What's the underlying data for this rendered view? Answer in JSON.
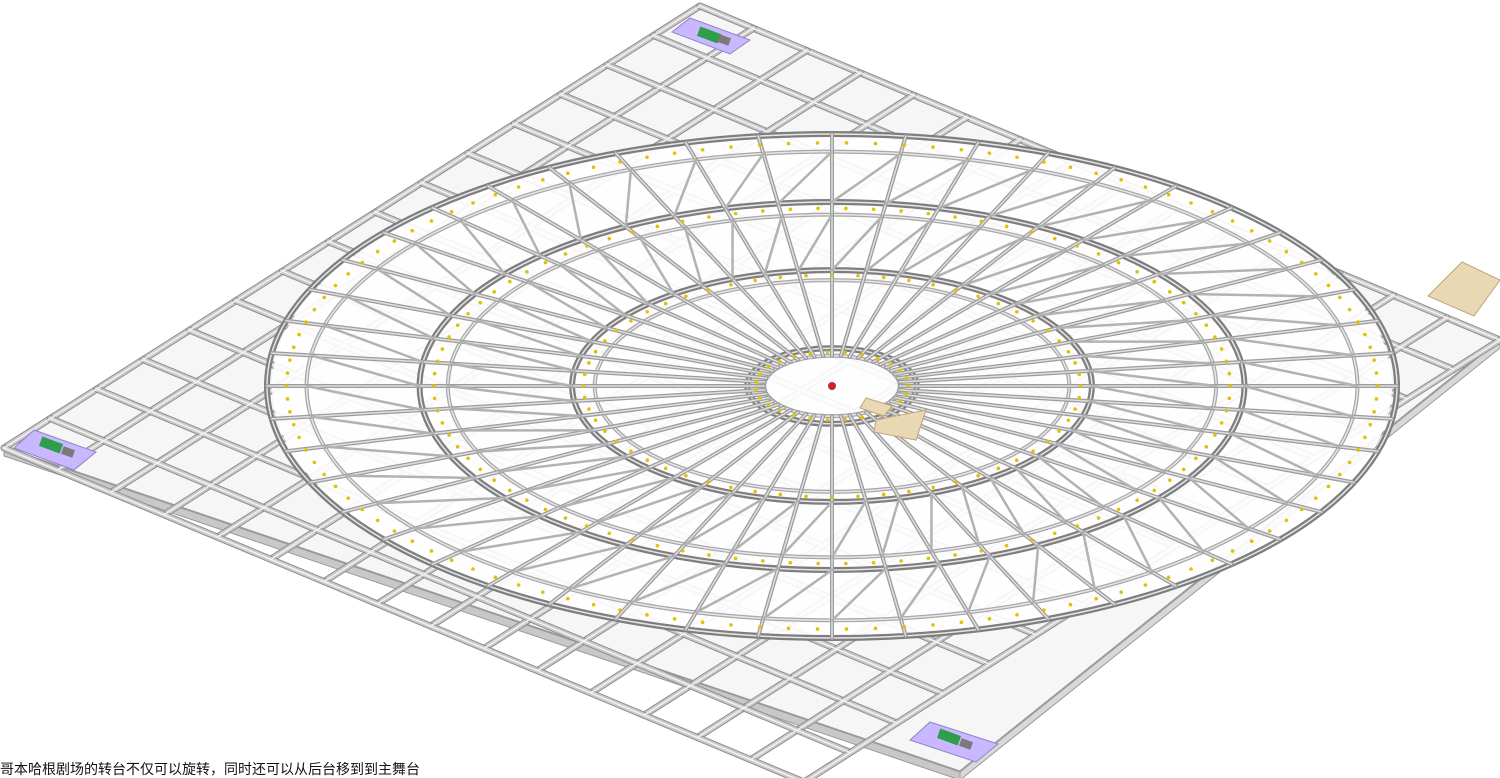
{
  "caption": "哥本哈根剧场的转台不仅可以旋转，同时还可以从后台移到到主舞台",
  "colors": {
    "background": "#ffffff",
    "beam": "#c9c9c9",
    "beam_shadow": "#8f8f8f",
    "beam_highlight": "#f2f2f2",
    "drive_unit_pad": "#c9b8ff",
    "drive_unit_motor": "#2f9e4b",
    "wood_panel": "#ead7b4",
    "bolt_marker": "#e0c200",
    "hub_marker": "#c62828"
  },
  "icons": {
    "stage_frame": "revolving-stage-frame-illustration",
    "drive_unit": "drive-unit-icon",
    "wood_panel": "wood-panel-icon"
  }
}
